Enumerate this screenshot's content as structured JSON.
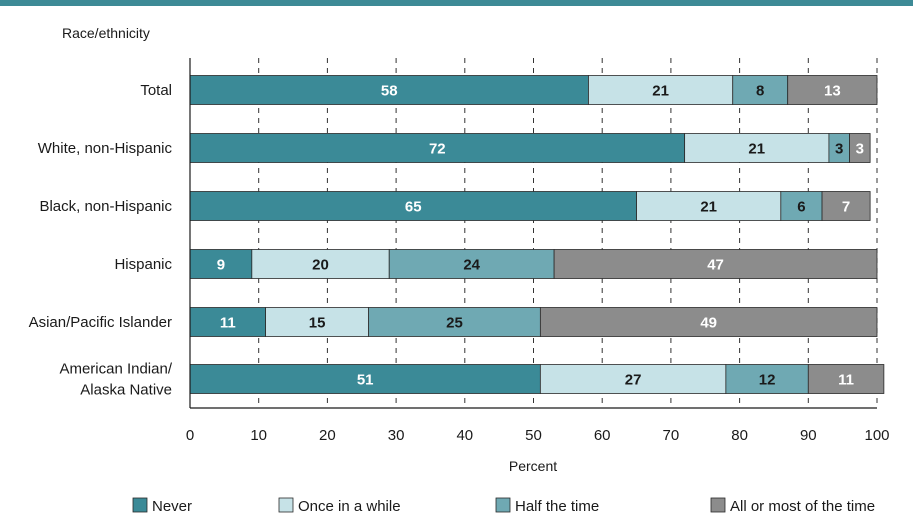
{
  "chart_data": {
    "type": "bar",
    "orientation": "horizontal",
    "stacked": true,
    "y_axis_title": "Race/ethnicity",
    "xlabel": "Percent",
    "xlim": [
      0,
      100
    ],
    "xticks": [
      0,
      10,
      20,
      30,
      40,
      50,
      60,
      70,
      80,
      90,
      100
    ],
    "grid": "vertical dashed",
    "legend_position": "bottom",
    "categories": [
      "Total",
      "White, non-Hispanic",
      "Black, non-Hispanic",
      "Hispanic",
      "Asian/Pacific Islander",
      "American Indian/\nAlaska Native"
    ],
    "series": [
      {
        "name": "Never",
        "color": "#3b8a97",
        "label_color": "#ffffff",
        "values": [
          58,
          72,
          65,
          9,
          11,
          51
        ]
      },
      {
        "name": "Once in a while",
        "color": "#c6e2e7",
        "label_color": "#1a1a1a",
        "values": [
          21,
          21,
          21,
          20,
          15,
          27
        ]
      },
      {
        "name": "Half the time",
        "color": "#6fa9b3",
        "label_color": "#1a1a1a",
        "values": [
          8,
          3,
          6,
          24,
          25,
          12
        ]
      },
      {
        "name": "All or most of the time",
        "color": "#8c8c8c",
        "label_color": "#ffffff",
        "values": [
          13,
          3,
          7,
          47,
          49,
          11
        ]
      }
    ]
  }
}
